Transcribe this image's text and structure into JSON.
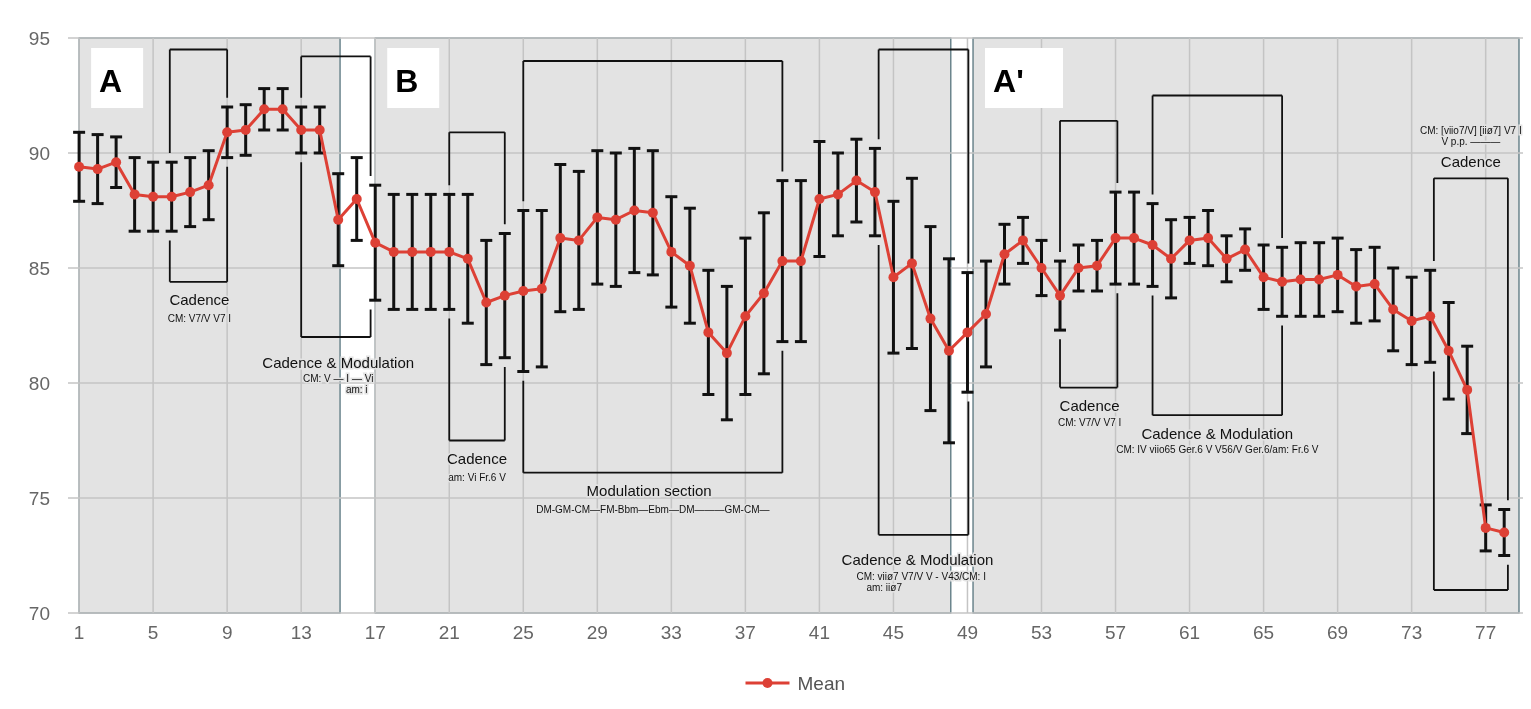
{
  "chart_data": {
    "type": "line",
    "x": [
      1,
      2,
      3,
      4,
      5,
      6,
      7,
      8,
      9,
      10,
      11,
      12,
      13,
      14,
      15,
      16,
      17,
      18,
      19,
      20,
      21,
      22,
      23,
      24,
      25,
      26,
      27,
      28,
      29,
      30,
      31,
      32,
      33,
      34,
      35,
      36,
      37,
      38,
      39,
      40,
      41,
      42,
      43,
      44,
      45,
      46,
      47,
      48,
      49,
      50,
      51,
      52,
      53,
      54,
      55,
      56,
      57,
      58,
      59,
      60,
      61,
      62,
      63,
      64,
      65,
      66,
      67,
      68,
      69,
      70,
      71,
      72,
      73,
      74,
      75,
      76,
      77,
      78
    ],
    "series": [
      {
        "name": "Mean",
        "color": "#dd4035",
        "values": [
          89.4,
          89.3,
          89.6,
          88.2,
          88.1,
          88.1,
          88.3,
          88.6,
          90.9,
          91.0,
          91.9,
          91.9,
          91.0,
          91.0,
          87.1,
          88.0,
          86.1,
          85.7,
          85.7,
          85.7,
          85.7,
          85.4,
          83.5,
          83.8,
          84.0,
          84.1,
          86.3,
          86.2,
          87.2,
          87.1,
          87.5,
          87.4,
          85.7,
          85.1,
          82.2,
          81.3,
          82.9,
          83.9,
          85.3,
          85.3,
          88.0,
          88.2,
          88.8,
          88.3,
          84.6,
          85.2,
          82.8,
          81.4,
          82.2,
          83.0,
          85.6,
          86.2,
          85.0,
          83.8,
          85.0,
          85.1,
          86.3,
          86.3,
          86.0,
          85.4,
          86.2,
          86.3,
          85.4,
          85.8,
          84.6,
          84.4,
          84.5,
          84.5,
          84.7,
          84.2,
          84.3,
          83.2,
          82.7,
          82.9,
          81.4,
          79.7,
          73.7,
          73.5
        ],
        "errors": [
          1.5,
          1.5,
          1.1,
          1.6,
          1.5,
          1.5,
          1.5,
          1.5,
          1.1,
          1.1,
          0.9,
          0.9,
          1.0,
          1.0,
          2.0,
          1.8,
          2.5,
          2.5,
          2.5,
          2.5,
          2.5,
          2.8,
          2.7,
          2.7,
          3.5,
          3.4,
          3.2,
          3.0,
          2.9,
          2.9,
          2.7,
          2.7,
          2.4,
          2.5,
          2.7,
          2.9,
          3.4,
          3.5,
          3.5,
          3.5,
          2.5,
          1.8,
          1.8,
          1.9,
          3.3,
          3.7,
          4.0,
          4.0,
          2.6,
          2.3,
          1.3,
          1.0,
          1.2,
          1.5,
          1.0,
          1.1,
          2.0,
          2.0,
          1.8,
          1.7,
          1.0,
          1.2,
          1.0,
          0.9,
          1.4,
          1.5,
          1.6,
          1.6,
          1.6,
          1.6,
          1.6,
          1.8,
          1.9,
          2.0,
          2.1,
          1.9,
          1.0,
          1.0
        ]
      }
    ],
    "xlim": [
      0.4,
      78.8
    ],
    "xticks": [
      1,
      5,
      9,
      13,
      17,
      21,
      25,
      29,
      33,
      37,
      41,
      45,
      49,
      53,
      57,
      61,
      65,
      69,
      73,
      77
    ],
    "ylim": [
      70,
      95
    ],
    "yticks": [
      70,
      75,
      80,
      85,
      90,
      95
    ],
    "grid": true,
    "marker": "circle",
    "line_style": "solid",
    "legend": "bottom",
    "bands": [
      {
        "axis": "x",
        "from": 1,
        "to": 15.1,
        "label": "A",
        "color": "#e3e3e3"
      },
      {
        "axis": "x",
        "from": 17,
        "to": 48.1,
        "label": "B",
        "color": "#e3e3e3"
      },
      {
        "axis": "x",
        "from": 49.3,
        "to": 78.8,
        "label": "A'",
        "color": "#e3e3e3"
      }
    ],
    "annotations": [
      "Cadence",
      "CM: V7/V V7 I",
      "Cadence & Modulation",
      "CM: V — I  — Vi",
      "am: i",
      "Cadence",
      "am: Vi  Fr.6  V",
      "Modulation section",
      "DM-GM-CM—FM-Bbm—Ebm—DM———GM-CM—",
      "Cadence & Modulation",
      "CM: viiø7  V7/V  V - V43/CM:  I",
      "am: iiø7",
      "Cadence",
      "CM: V7/V V7 I",
      "Cadence & Modulation",
      "CM: IV viio65 Ger.6  V V56/V Ger.6/am: Fr.6 V",
      "CM: [viio7/V]  [iiø7]  V7 I",
      "V p.p. ———",
      "Cadence"
    ]
  }
}
